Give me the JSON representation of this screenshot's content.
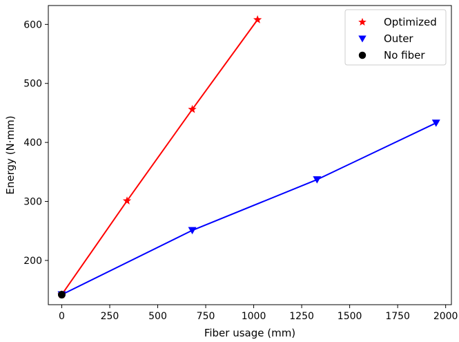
{
  "chart_data": {
    "type": "line",
    "xlabel": "Fiber usage (mm)",
    "ylabel": "Energy (N·mm)",
    "xlim": [
      -70,
      2030
    ],
    "ylim": [
      125,
      632
    ],
    "xticks": [
      0,
      250,
      500,
      750,
      1000,
      1250,
      1500,
      1750,
      2000
    ],
    "yticks": [
      200,
      300,
      400,
      500,
      600
    ],
    "grid": false,
    "legend_position": "top-right",
    "series": [
      {
        "name": "Optimized",
        "color": "#ff0000",
        "marker": "star",
        "line": true,
        "points": [
          [
            0,
            142
          ],
          [
            340,
            301
          ],
          [
            680,
            456
          ],
          [
            1020,
            608
          ]
        ]
      },
      {
        "name": "Outer",
        "color": "#0000ff",
        "marker": "triangle-down",
        "line": true,
        "points": [
          [
            0,
            142
          ],
          [
            680,
            251
          ],
          [
            1330,
            337
          ],
          [
            1950,
            433
          ]
        ]
      },
      {
        "name": "No fiber",
        "color": "#000000",
        "marker": "circle",
        "line": false,
        "points": [
          [
            0,
            142
          ]
        ]
      }
    ]
  }
}
